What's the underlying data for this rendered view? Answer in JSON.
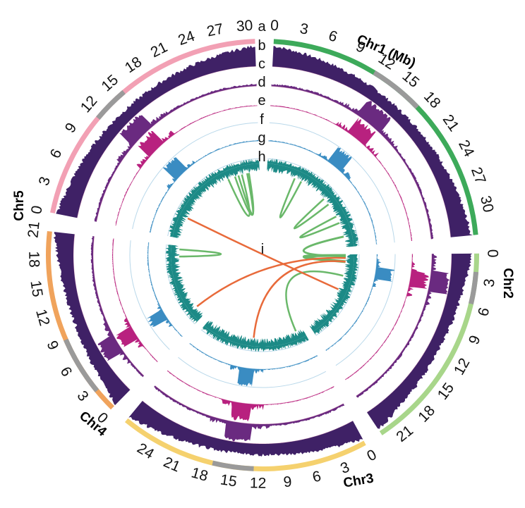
{
  "track_labels": [
    "a",
    "b",
    "c",
    "d",
    "e",
    "f",
    "g",
    "h",
    "i"
  ],
  "chromosomes": [
    {
      "id": "chr1",
      "name": "Chr1 (Mb)",
      "length": 33,
      "color": "#3daa5a",
      "ticks": [
        "0",
        "3",
        "6",
        "9",
        "12",
        "15",
        "18",
        "21",
        "24",
        "27",
        "30"
      ],
      "gray": [
        [
          11.5,
          17.5
        ]
      ]
    },
    {
      "id": "chr2",
      "name": "Chr2",
      "length": 23,
      "color": "#a8d68a",
      "ticks": [
        "0",
        "3",
        "6",
        "9",
        "12",
        "15",
        "18",
        "21"
      ],
      "gray": [
        [
          2,
          5.5
        ]
      ]
    },
    {
      "id": "chr3",
      "name": "Chr3",
      "length": 27.5,
      "color": "#f5d16e",
      "ticks": [
        "0",
        "3",
        "6",
        "9",
        "12",
        "15",
        "18",
        "21",
        "24"
      ],
      "gray": [
        [
          12.5,
          17
        ]
      ]
    },
    {
      "id": "chr4",
      "name": "Chr4",
      "length": 21,
      "color": "#f0a35c",
      "ticks": [
        "0",
        "3",
        "6",
        "9",
        "12",
        "15",
        "18",
        "21"
      ],
      "gray": [
        [
          2.5,
          9
        ]
      ]
    },
    {
      "id": "chr5",
      "name": "Chr5",
      "length": 31,
      "color": "#f2a0b4",
      "ticks": [
        "0",
        "3",
        "6",
        "9",
        "12",
        "15",
        "18",
        "21",
        "24",
        "27",
        "30"
      ],
      "gray": [
        [
          11.5,
          15.5
        ]
      ]
    }
  ],
  "colors": {
    "density_dark": "#3f2166",
    "density_mid": "#6a2a80",
    "peak_magenta": "#b8217f",
    "peak_blue": "#3a8cc2",
    "gene_teal": "#1c8a86",
    "syn_green": "#6ab86a",
    "syn_orange": "#e86a3a",
    "grid_pink": "#e9b8cf",
    "grid_blue": "#b9d8ea"
  },
  "inner_label": "i"
}
